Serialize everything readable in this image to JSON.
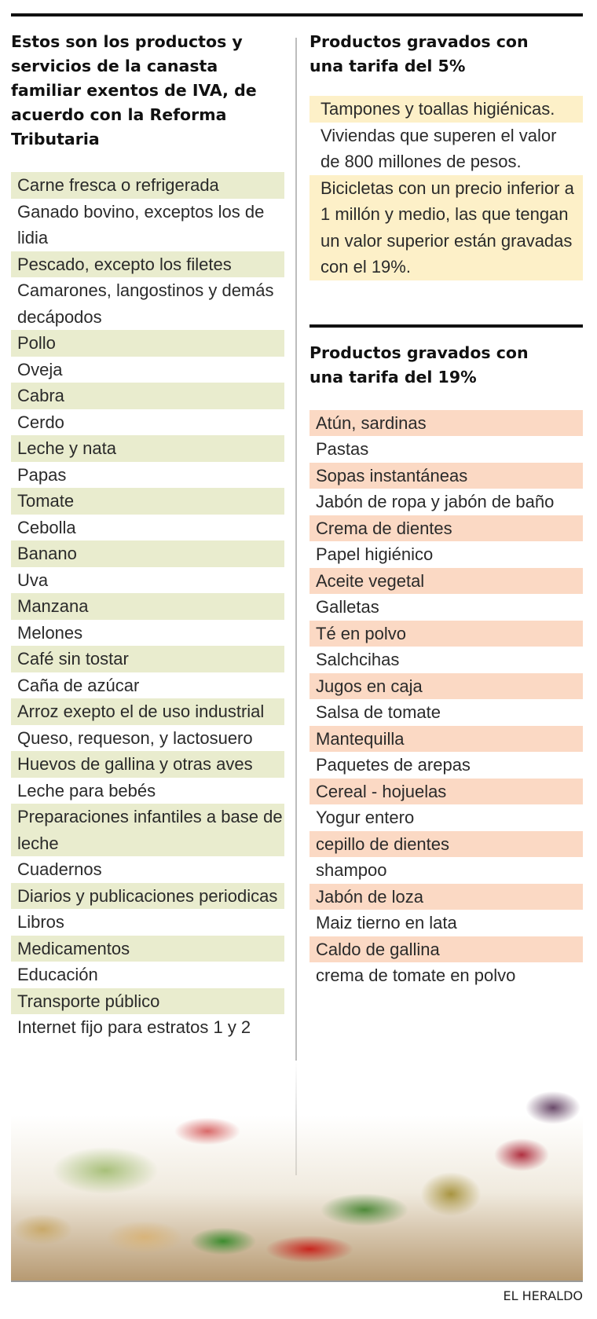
{
  "left": {
    "heading": "Estos son los productos y servicios de la canasta familiar exentos de IVA, de acuerdo con la Reforma Tributaria",
    "items": [
      "Carne fresca o refrigerada",
      "Ganado bovino, exceptos los de lidia",
      "Pescado, excepto los filetes",
      "Camarones, langostinos y demás decápodos",
      "Pollo",
      "Oveja",
      "Cabra",
      "Cerdo",
      "Leche y nata",
      "Papas",
      "Tomate",
      "Cebolla",
      "Banano",
      "Uva",
      "Manzana",
      "Melones",
      "Café sin tostar",
      "Caña de azúcar",
      "Arroz exepto el de uso industrial",
      "Queso, requeson, y lactosuero",
      "Huevos de gallina y otras aves",
      "Leche para bebés",
      "Preparaciones infantiles a base de leche",
      "Cuadernos",
      "Diarios y publicaciones periodicas",
      "Libros",
      "Medicamentos",
      "Educación",
      "Transporte público",
      "Internet fijo para estratos 1 y 2"
    ]
  },
  "tax5": {
    "heading": "Productos gravados con una tarifa del 5%",
    "items": [
      "Tampones y toallas higiénicas.",
      "Viviendas que superen el valor de 800 millones de pesos.",
      "Bicicletas con un precio inferior a 1 millón y medio, las que tengan un valor superior están gravadas con el 19%."
    ]
  },
  "tax19": {
    "heading": "Productos gravados con una tarifa del 19%",
    "items": [
      "Atún, sardinas",
      "Pastas",
      "Sopas instantáneas",
      "Jabón de ropa y jabón de baño",
      "Crema de dientes",
      "Papel higiénico",
      "Aceite vegetal",
      "Galletas",
      "Té en polvo",
      "Salchcihas",
      "Jugos en caja",
      "Salsa de tomate",
      "Mantequilla",
      "Paquetes de arepas",
      "Cereal - hojuelas",
      "Yogur entero",
      "cepillo de dientes",
      "shampoo",
      "Jabón de loza",
      "Maiz tierno en lata",
      "Caldo de gallina",
      "crema de tomate en polvo"
    ]
  },
  "credit": "EL HERALDO",
  "colors": {
    "green_band": "#e9ecce",
    "peach_band": "#fbd9c4",
    "yellow_box": "#fdf0c8"
  }
}
